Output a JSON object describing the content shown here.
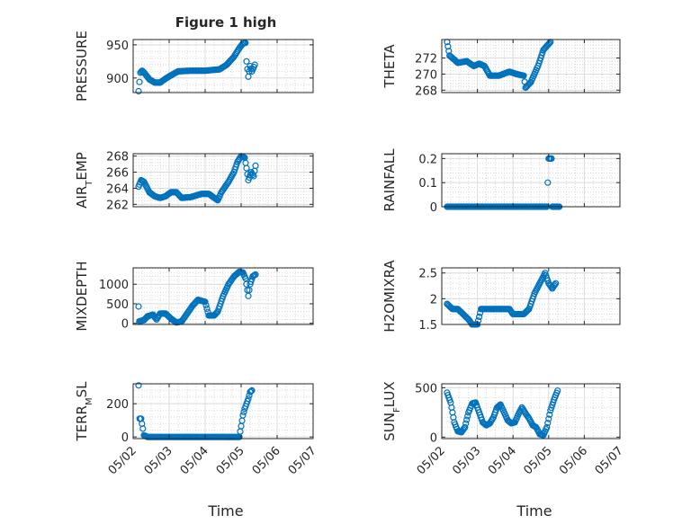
{
  "figure": {
    "title": "Figure 1 high",
    "xlabel": "Time"
  },
  "chart_data": [
    {
      "type": "scatter",
      "ylabel": "PRESSURE",
      "ylim": [
        878,
        958
      ],
      "yticks": [
        900,
        950
      ],
      "yticklabels": [
        "900",
        "950"
      ],
      "xlim": [
        0,
        5
      ],
      "xticklabels": [
        "05/02",
        "05/03",
        "05/04",
        "05/05",
        "05/06",
        "05/07"
      ],
      "show_xticklabels": false,
      "grid": true,
      "marker": "open-circle",
      "color": "#0072BD",
      "anchors": [
        [
          0.15,
          880
        ],
        [
          0.2,
          908
        ],
        [
          0.25,
          911
        ],
        [
          0.32,
          907
        ],
        [
          0.45,
          898
        ],
        [
          0.6,
          893
        ],
        [
          0.75,
          893
        ],
        [
          0.9,
          899
        ],
        [
          1.05,
          904
        ],
        [
          1.25,
          910
        ],
        [
          1.6,
          911
        ],
        [
          2.0,
          911
        ],
        [
          2.4,
          913
        ],
        [
          2.6,
          920
        ],
        [
          2.8,
          932
        ],
        [
          2.95,
          945
        ],
        [
          3.05,
          952
        ],
        [
          3.12,
          953
        ],
        [
          3.15,
          925
        ],
        [
          3.2,
          902
        ],
        [
          3.25,
          918
        ],
        [
          3.3,
          910
        ],
        [
          3.38,
          920
        ]
      ]
    },
    {
      "type": "scatter",
      "ylabel": "THETA",
      "ylim": [
        267.7,
        274.3
      ],
      "yticks": [
        268,
        270,
        272
      ],
      "yticklabels": [
        "268",
        "270",
        "272"
      ],
      "xlim": [
        0,
        5
      ],
      "xticklabels": [
        "05/02",
        "05/03",
        "05/04",
        "05/05",
        "05/06",
        "05/07"
      ],
      "show_xticklabels": false,
      "grid": true,
      "marker": "open-circle",
      "color": "#0072BD",
      "anchors": [
        [
          0.15,
          274
        ],
        [
          0.22,
          272.3
        ],
        [
          0.3,
          272.0
        ],
        [
          0.45,
          271.4
        ],
        [
          0.7,
          271.6
        ],
        [
          0.9,
          271.0
        ],
        [
          1.05,
          271.3
        ],
        [
          1.2,
          271.0
        ],
        [
          1.35,
          269.8
        ],
        [
          1.6,
          269.8
        ],
        [
          1.9,
          270.3
        ],
        [
          2.1,
          270.0
        ],
        [
          2.3,
          269.8
        ],
        [
          2.35,
          268.3
        ],
        [
          2.5,
          269.0
        ],
        [
          2.7,
          271.0
        ],
        [
          2.85,
          273.0
        ],
        [
          2.95,
          273.5
        ],
        [
          3.05,
          274.0
        ]
      ]
    },
    {
      "type": "scatter",
      "ylabel": "AIR_TEMP",
      "ylim": [
        261.7,
        268.3
      ],
      "yticks": [
        262,
        264,
        266,
        268
      ],
      "yticklabels": [
        "262",
        "264",
        "266",
        "268"
      ],
      "xlim": [
        0,
        5
      ],
      "xticklabels": [
        "05/02",
        "05/03",
        "05/04",
        "05/05",
        "05/06",
        "05/07"
      ],
      "show_xticklabels": false,
      "grid": true,
      "marker": "open-circle",
      "color": "#0072BD",
      "anchors": [
        [
          0.15,
          264.2
        ],
        [
          0.22,
          265.0
        ],
        [
          0.3,
          264.8
        ],
        [
          0.45,
          263.5
        ],
        [
          0.6,
          263.0
        ],
        [
          0.75,
          262.8
        ],
        [
          0.9,
          263.0
        ],
        [
          1.05,
          263.5
        ],
        [
          1.2,
          263.5
        ],
        [
          1.35,
          262.8
        ],
        [
          1.6,
          262.9
        ],
        [
          1.9,
          263.3
        ],
        [
          2.1,
          263.3
        ],
        [
          2.35,
          262.5
        ],
        [
          2.45,
          263.5
        ],
        [
          2.65,
          264.8
        ],
        [
          2.8,
          266.0
        ],
        [
          2.9,
          267.3
        ],
        [
          3.0,
          268.0
        ],
        [
          3.1,
          267.8
        ],
        [
          3.15,
          266.5
        ],
        [
          3.2,
          265.0
        ],
        [
          3.28,
          266.0
        ],
        [
          3.35,
          265.5
        ],
        [
          3.4,
          266.8
        ]
      ]
    },
    {
      "type": "scatter",
      "ylabel": "RAINFALL",
      "ylim": [
        0,
        0.22
      ],
      "yticks": [
        0,
        0.1,
        0.2
      ],
      "yticklabels": [
        "0",
        "0.1",
        "0.2"
      ],
      "xlim": [
        0,
        5
      ],
      "xticklabels": [
        "05/02",
        "05/03",
        "05/04",
        "05/05",
        "05/06",
        "05/07"
      ],
      "show_xticklabels": false,
      "grid": true,
      "marker": "open-circle",
      "color": "#0072BD",
      "anchors": [
        [
          0.15,
          0
        ],
        [
          1.0,
          0
        ],
        [
          2.0,
          0
        ],
        [
          2.95,
          0
        ],
        [
          3.0,
          0.2
        ],
        [
          3.08,
          0.2
        ],
        [
          3.1,
          0
        ],
        [
          3.3,
          0
        ]
      ]
    },
    {
      "type": "scatter",
      "ylabel": "MIXDEPTH",
      "ylim": [
        -30,
        1420
      ],
      "yticks": [
        0,
        500,
        1000
      ],
      "yticklabels": [
        "0",
        "500",
        "1000"
      ],
      "xlim": [
        0,
        5
      ],
      "xticklabels": [
        "05/02",
        "05/03",
        "05/04",
        "05/05",
        "05/06",
        "05/07"
      ],
      "show_xticklabels": false,
      "grid": true,
      "marker": "open-circle",
      "color": "#0072BD",
      "anchors": [
        [
          0.15,
          430
        ],
        [
          0.17,
          50
        ],
        [
          0.3,
          80
        ],
        [
          0.4,
          180
        ],
        [
          0.55,
          220
        ],
        [
          0.65,
          100
        ],
        [
          0.75,
          250
        ],
        [
          0.9,
          250
        ],
        [
          1.05,
          120
        ],
        [
          1.2,
          20
        ],
        [
          1.35,
          50
        ],
        [
          1.5,
          250
        ],
        [
          1.65,
          450
        ],
        [
          1.8,
          600
        ],
        [
          2.0,
          550
        ],
        [
          2.1,
          200
        ],
        [
          2.25,
          200
        ],
        [
          2.35,
          300
        ],
        [
          2.5,
          700
        ],
        [
          2.65,
          1000
        ],
        [
          2.8,
          1200
        ],
        [
          2.95,
          1320
        ],
        [
          3.05,
          1300
        ],
        [
          3.12,
          1150
        ],
        [
          3.2,
          700
        ],
        [
          3.25,
          1000
        ],
        [
          3.32,
          1200
        ],
        [
          3.4,
          1250
        ]
      ]
    },
    {
      "type": "scatter",
      "ylabel": "H2OMIXRA",
      "ylim": [
        1.5,
        2.6
      ],
      "yticks": [
        1.5,
        2,
        2.5
      ],
      "yticklabels": [
        "1.5",
        "2",
        "2.5"
      ],
      "xlim": [
        0,
        5
      ],
      "xticklabels": [
        "05/02",
        "05/03",
        "05/04",
        "05/05",
        "05/06",
        "05/07"
      ],
      "show_xticklabels": false,
      "grid": true,
      "marker": "open-circle",
      "color": "#0072BD",
      "anchors": [
        [
          0.15,
          1.9
        ],
        [
          0.3,
          1.8
        ],
        [
          0.45,
          1.8
        ],
        [
          0.6,
          1.7
        ],
        [
          0.75,
          1.6
        ],
        [
          0.85,
          1.5
        ],
        [
          1.0,
          1.5
        ],
        [
          1.1,
          1.8
        ],
        [
          1.3,
          1.8
        ],
        [
          1.6,
          1.8
        ],
        [
          1.9,
          1.8
        ],
        [
          2.0,
          1.7
        ],
        [
          2.3,
          1.7
        ],
        [
          2.45,
          1.8
        ],
        [
          2.6,
          2.1
        ],
        [
          2.75,
          2.3
        ],
        [
          2.9,
          2.5
        ],
        [
          3.0,
          2.3
        ],
        [
          3.1,
          2.2
        ],
        [
          3.2,
          2.3
        ]
      ]
    },
    {
      "type": "scatter",
      "ylabel": "TERR_MSL",
      "ylim": [
        -10,
        320
      ],
      "yticks": [
        0,
        200
      ],
      "yticklabels": [
        "0",
        "200"
      ],
      "xlim": [
        0,
        5
      ],
      "xticklabels": [
        "05/02",
        "05/03",
        "05/04",
        "05/05",
        "05/06",
        "05/07"
      ],
      "show_xticklabels": true,
      "grid": true,
      "marker": "open-circle",
      "color": "#0072BD",
      "anchors": [
        [
          0.15,
          310
        ],
        [
          0.18,
          110
        ],
        [
          0.22,
          110
        ],
        [
          0.27,
          50
        ],
        [
          0.3,
          10
        ],
        [
          0.4,
          0
        ],
        [
          1.0,
          0
        ],
        [
          2.0,
          0
        ],
        [
          2.95,
          0
        ],
        [
          3.05,
          130
        ],
        [
          3.1,
          170
        ],
        [
          3.15,
          200
        ],
        [
          3.2,
          230
        ],
        [
          3.25,
          270
        ],
        [
          3.3,
          280
        ]
      ]
    },
    {
      "type": "scatter",
      "ylabel": "SUN_FLUX",
      "ylim": [
        -15,
        540
      ],
      "yticks": [
        0,
        500
      ],
      "yticklabels": [
        "0",
        "500"
      ],
      "xlim": [
        0,
        5
      ],
      "xticklabels": [
        "05/02",
        "05/03",
        "05/04",
        "05/05",
        "05/06",
        "05/07"
      ],
      "show_xticklabels": true,
      "grid": true,
      "marker": "open-circle",
      "color": "#0072BD",
      "anchors": [
        [
          0.15,
          450
        ],
        [
          0.25,
          350
        ],
        [
          0.35,
          150
        ],
        [
          0.45,
          60
        ],
        [
          0.55,
          50
        ],
        [
          0.65,
          100
        ],
        [
          0.75,
          250
        ],
        [
          0.85,
          340
        ],
        [
          0.95,
          350
        ],
        [
          1.05,
          250
        ],
        [
          1.15,
          150
        ],
        [
          1.25,
          120
        ],
        [
          1.35,
          140
        ],
        [
          1.45,
          200
        ],
        [
          1.55,
          300
        ],
        [
          1.65,
          330
        ],
        [
          1.75,
          250
        ],
        [
          1.85,
          170
        ],
        [
          1.95,
          140
        ],
        [
          2.05,
          150
        ],
        [
          2.15,
          230
        ],
        [
          2.25,
          300
        ],
        [
          2.35,
          240
        ],
        [
          2.45,
          190
        ],
        [
          2.55,
          120
        ],
        [
          2.65,
          100
        ],
        [
          2.75,
          30
        ],
        [
          2.85,
          20
        ],
        [
          2.95,
          100
        ],
        [
          3.05,
          270
        ],
        [
          3.15,
          380
        ],
        [
          3.25,
          470
        ]
      ]
    }
  ]
}
